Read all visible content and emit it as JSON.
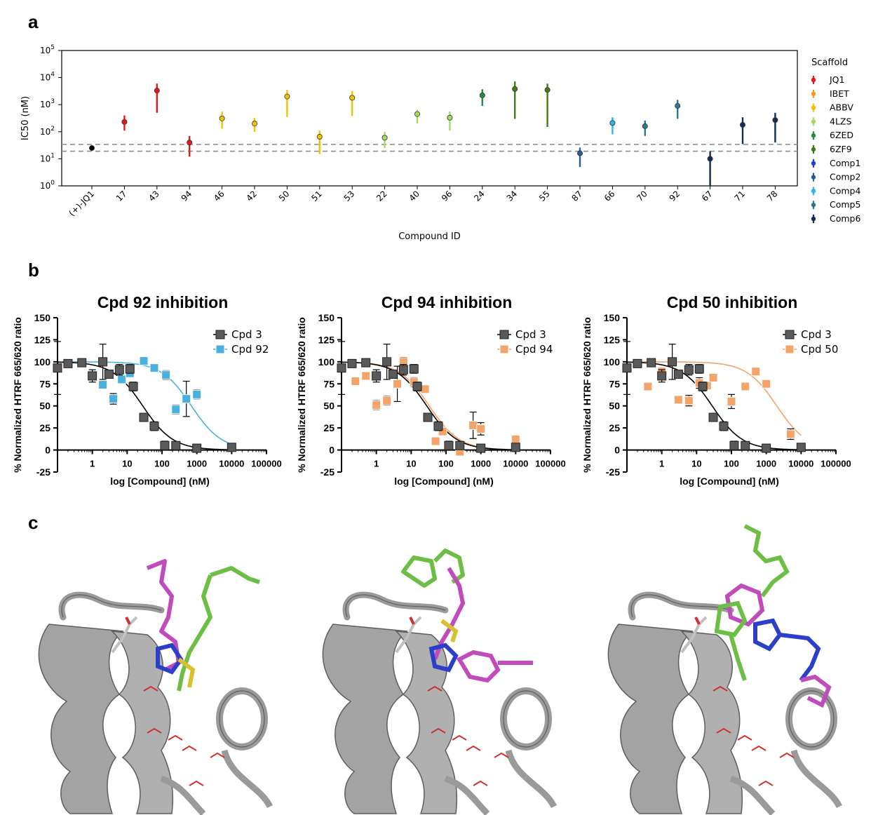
{
  "panel_labels": {
    "a": "a",
    "b": "b",
    "c": "c"
  },
  "chart_data": [
    {
      "type": "scatter",
      "panel": "a",
      "xlabel": "Compound ID",
      "ylabel": "IC50 (nM)",
      "yscale": "log",
      "ylim": [
        1,
        100000
      ],
      "yticks": [
        {
          "value": 1,
          "label": "10",
          "exp": "0"
        },
        {
          "value": 10,
          "label": "10",
          "exp": "1"
        },
        {
          "value": 100,
          "label": "10",
          "exp": "2"
        },
        {
          "value": 1000,
          "label": "10",
          "exp": "3"
        },
        {
          "value": 10000,
          "label": "10",
          "exp": "4"
        },
        {
          "value": 100000,
          "label": "10",
          "exp": "5"
        }
      ],
      "reference_lines": [
        19,
        34
      ],
      "legend_title": "Scaffold",
      "legend": [
        {
          "name": "JQ1",
          "color": "#e31a1c"
        },
        {
          "name": "IBET",
          "color": "#f39b1f"
        },
        {
          "name": "ABBV",
          "color": "#f2c200"
        },
        {
          "name": "4LZS",
          "color": "#a6d96a"
        },
        {
          "name": "6ZED",
          "color": "#2a8a4a"
        },
        {
          "name": "6ZF9",
          "color": "#3f7f18"
        },
        {
          "name": "Comp1",
          "color": "#1f3fc8"
        },
        {
          "name": "Comp2",
          "color": "#2c5aa0"
        },
        {
          "name": "Comp4",
          "color": "#29b6e8"
        },
        {
          "name": "Comp5",
          "color": "#2c7a8c"
        },
        {
          "name": "Comp6",
          "color": "#152c5a"
        }
      ],
      "points": [
        {
          "id": "(+)-JQ1",
          "ic50": 25,
          "lo": 20,
          "hi": 31,
          "color": "#000000"
        },
        {
          "id": "17",
          "ic50": 230,
          "lo": 110,
          "hi": 400,
          "color": "#e31a1c"
        },
        {
          "id": "43",
          "ic50": 3300,
          "lo": 500,
          "hi": 6000,
          "color": "#e31a1c"
        },
        {
          "id": "94",
          "ic50": 40,
          "lo": 12,
          "hi": 70,
          "color": "#e31a1c"
        },
        {
          "id": "46",
          "ic50": 310,
          "lo": 130,
          "hi": 550,
          "color": "#f2c200"
        },
        {
          "id": "42",
          "ic50": 200,
          "lo": 100,
          "hi": 320,
          "color": "#f2c200"
        },
        {
          "id": "50",
          "ic50": 2000,
          "lo": 350,
          "hi": 3500,
          "color": "#f2c200"
        },
        {
          "id": "51",
          "ic50": 65,
          "lo": 15,
          "hi": 110,
          "color": "#f2c200"
        },
        {
          "id": "53",
          "ic50": 1800,
          "lo": 380,
          "hi": 3200,
          "color": "#f2c200"
        },
        {
          "id": "22",
          "ic50": 60,
          "lo": 25,
          "hi": 100,
          "color": "#a6d96a"
        },
        {
          "id": "40",
          "ic50": 450,
          "lo": 200,
          "hi": 650,
          "color": "#a6d96a"
        },
        {
          "id": "96",
          "ic50": 330,
          "lo": 110,
          "hi": 560,
          "color": "#a6d96a"
        },
        {
          "id": "24",
          "ic50": 2200,
          "lo": 900,
          "hi": 3700,
          "color": "#2a8a4a"
        },
        {
          "id": "34",
          "ic50": 3800,
          "lo": 300,
          "hi": 7200,
          "color": "#3f7f18"
        },
        {
          "id": "55",
          "ic50": 3500,
          "lo": 150,
          "hi": 6000,
          "color": "#3f7f18"
        },
        {
          "id": "87",
          "ic50": 16,
          "lo": 5,
          "hi": 26,
          "color": "#2c5aa0"
        },
        {
          "id": "66",
          "ic50": 210,
          "lo": 80,
          "hi": 340,
          "color": "#29b6e8"
        },
        {
          "id": "70",
          "ic50": 160,
          "lo": 70,
          "hi": 260,
          "color": "#2c7a8c"
        },
        {
          "id": "92",
          "ic50": 900,
          "lo": 300,
          "hi": 1500,
          "color": "#2c7a8c"
        },
        {
          "id": "67",
          "ic50": 10,
          "lo": 1,
          "hi": 19,
          "color": "#152c5a"
        },
        {
          "id": "71",
          "ic50": 180,
          "lo": 35,
          "hi": 340,
          "color": "#152c5a"
        },
        {
          "id": "78",
          "ic50": 270,
          "lo": 40,
          "hi": 500,
          "color": "#152c5a"
        }
      ]
    },
    {
      "type": "scatter",
      "panel": "b",
      "title": "Cpd 92 inhibition",
      "xlabel": "log [Compound] (nM)",
      "ylabel": "% Normalized HTRF 665/620 ratio",
      "xscale": "log",
      "xlim": [
        0.1,
        100000
      ],
      "ylim": [
        -25,
        150
      ],
      "xticks": [
        "1",
        "10",
        "100",
        "1000",
        "10000",
        "100000"
      ],
      "yticks": [
        "-25",
        "0",
        "25",
        "50",
        "75",
        "100",
        "125",
        "150"
      ],
      "legend": "top-right",
      "series": [
        {
          "name": "Cpd 3",
          "color": "#5a5a5a",
          "ic50": 28,
          "points": [
            [
              0.1,
              93,
              30
            ],
            [
              0.2,
              98,
              2
            ],
            [
              0.5,
              99,
              1
            ],
            [
              1,
              84,
              7
            ],
            [
              2,
              100,
              20
            ],
            [
              3,
              86,
              3
            ],
            [
              6,
              91,
              6
            ],
            [
              12,
              92,
              5
            ],
            [
              15,
              72,
              5
            ],
            [
              30,
              37,
              3
            ],
            [
              60,
              27,
              5
            ],
            [
              120,
              5,
              5
            ],
            [
              250,
              5,
              2
            ],
            [
              1000,
              2,
              1
            ],
            [
              10000,
              3,
              4
            ]
          ]
        },
        {
          "name": "Cpd 92",
          "color": "#4ab0de",
          "ic50": 700,
          "points": [
            [
              2,
              74,
              4
            ],
            [
              4,
              58,
              6
            ],
            [
              7,
              80,
              3
            ],
            [
              12,
              87,
              4
            ],
            [
              30,
              101,
              4
            ],
            [
              60,
              93,
              4
            ],
            [
              130,
              85,
              5
            ],
            [
              250,
              46,
              5
            ],
            [
              500,
              58,
              20
            ],
            [
              1000,
              63,
              5
            ],
            [
              10000,
              3,
              2
            ]
          ]
        }
      ]
    },
    {
      "type": "scatter",
      "panel": "b",
      "title": "Cpd 94 inhibition",
      "xlabel": "log [Compound] (nM)",
      "ylabel": "% Normalized HTRF 665/620 ratio",
      "xscale": "log",
      "xlim": [
        0.1,
        100000
      ],
      "ylim": [
        -25,
        150
      ],
      "xticks": [
        "1",
        "10",
        "100",
        "1000",
        "10000",
        "100000"
      ],
      "yticks": [
        "-25",
        "0",
        "25",
        "50",
        "75",
        "100",
        "125",
        "150"
      ],
      "legend": "top-right",
      "series": [
        {
          "name": "Cpd 3",
          "color": "#5a5a5a",
          "ic50": 28,
          "points": [
            [
              0.1,
              93,
              30
            ],
            [
              0.2,
              98,
              2
            ],
            [
              0.5,
              99,
              1
            ],
            [
              1,
              84,
              7
            ],
            [
              2,
              100,
              20
            ],
            [
              3,
              86,
              3
            ],
            [
              6,
              91,
              6
            ],
            [
              12,
              92,
              5
            ],
            [
              15,
              72,
              5
            ],
            [
              30,
              37,
              3
            ],
            [
              60,
              27,
              5
            ],
            [
              120,
              5,
              5
            ],
            [
              250,
              5,
              2
            ],
            [
              1000,
              2,
              1
            ],
            [
              10000,
              3,
              4
            ]
          ]
        },
        {
          "name": "Cpd 94",
          "color": "#f4a46a",
          "ic50": 33,
          "points": [
            [
              0.25,
              78,
              2
            ],
            [
              0.5,
              84,
              2
            ],
            [
              1,
              51,
              5
            ],
            [
              2,
              56,
              5
            ],
            [
              4,
              75,
              20
            ],
            [
              6,
              100,
              5
            ],
            [
              12,
              77,
              5
            ],
            [
              25,
              69,
              4
            ],
            [
              50,
              10,
              4
            ],
            [
              80,
              21,
              4
            ],
            [
              250,
              -2,
              3
            ],
            [
              600,
              28,
              15
            ],
            [
              1000,
              24,
              7
            ],
            [
              10000,
              12,
              4
            ]
          ]
        }
      ]
    },
    {
      "type": "scatter",
      "panel": "b",
      "title": "Cpd 50 inhibition",
      "xlabel": "log [Compound] (nM)",
      "ylabel": "% Normalized HTRF 665/620 ratio",
      "xscale": "log",
      "xlim": [
        0.1,
        100000
      ],
      "ylim": [
        -25,
        150
      ],
      "xticks": [
        "1",
        "10",
        "100",
        "1000",
        "10000",
        "100000"
      ],
      "yticks": [
        "-25",
        "0",
        "25",
        "50",
        "75",
        "100",
        "125",
        "150"
      ],
      "legend": "top-right",
      "series": [
        {
          "name": "Cpd 3",
          "color": "#5a5a5a",
          "ic50": 28,
          "points": [
            [
              0.1,
              93,
              30
            ],
            [
              0.2,
              98,
              2
            ],
            [
              0.5,
              99,
              1
            ],
            [
              1,
              84,
              7
            ],
            [
              2,
              100,
              20
            ],
            [
              3,
              86,
              3
            ],
            [
              6,
              91,
              6
            ],
            [
              12,
              92,
              5
            ],
            [
              15,
              72,
              5
            ],
            [
              30,
              37,
              3
            ],
            [
              60,
              27,
              5
            ],
            [
              120,
              5,
              5
            ],
            [
              250,
              5,
              2
            ],
            [
              1000,
              2,
              1
            ],
            [
              10000,
              3,
              4
            ]
          ]
        },
        {
          "name": "Cpd 50",
          "color": "#f4a46a",
          "ic50": 2000,
          "points": [
            [
              0.4,
              72,
              2
            ],
            [
              1,
              89,
              3
            ],
            [
              3,
              57,
              3
            ],
            [
              6,
              56,
              6
            ],
            [
              12,
              76,
              6
            ],
            [
              20,
              73,
              3
            ],
            [
              30,
              82,
              3
            ],
            [
              100,
              55,
              8
            ],
            [
              250,
              72,
              3
            ],
            [
              500,
              89,
              3
            ],
            [
              1000,
              75,
              3
            ],
            [
              5000,
              18,
              6
            ]
          ]
        }
      ]
    }
  ]
}
